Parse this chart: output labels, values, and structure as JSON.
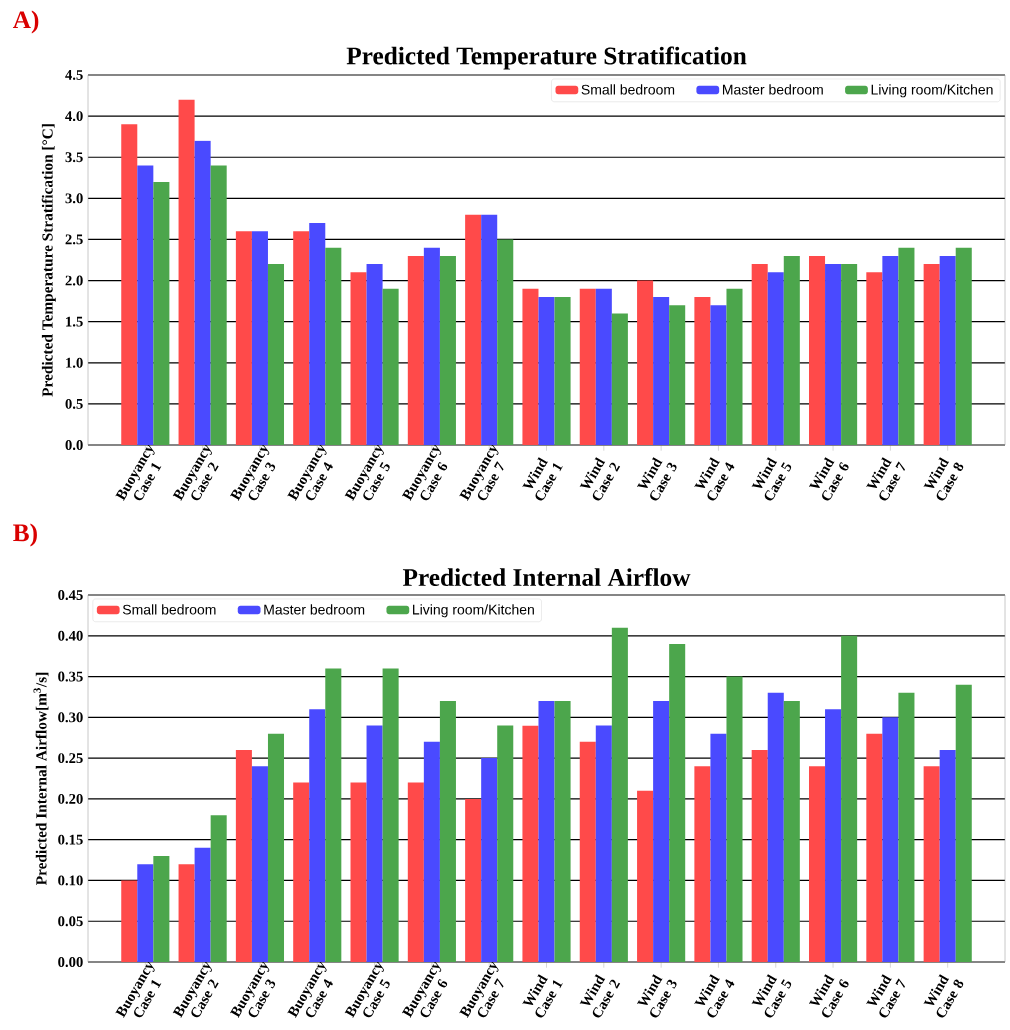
{
  "chart_data": [
    {
      "type": "bar",
      "title": "Predicted Temperature Stratification",
      "ylabel": "Predicted Temperature Stratification [°C]",
      "annotations": [
        "A)"
      ],
      "categories": [
        "Buoyancy Case 1",
        "Buoyancy Case 2",
        "Buoyancy Case 3",
        "Buoyancy Case 4",
        "Buoyancy Case 5",
        "Buoyancy Case 6",
        "Buoyancy Case 7",
        "Wind Case 1",
        "Wind Case 2",
        "Wind Case 3",
        "Wind Case 4",
        "Wind Case 5",
        "Wind Case 6",
        "Wind Case 7",
        "Wind Case 8"
      ],
      "series": [
        {
          "name": "Small bedroom",
          "color": "#ff4a4a",
          "values": [
            3.9,
            4.2,
            2.6,
            2.6,
            2.1,
            2.3,
            2.8,
            1.9,
            1.9,
            2.0,
            1.8,
            2.2,
            2.3,
            2.1,
            2.2
          ]
        },
        {
          "name": "Master bedroom",
          "color": "#4a4aff",
          "values": [
            3.4,
            3.7,
            2.6,
            2.7,
            2.2,
            2.4,
            2.8,
            1.8,
            1.9,
            1.8,
            1.7,
            2.1,
            2.2,
            2.3,
            2.3
          ]
        },
        {
          "name": "Living room/Kitchen",
          "color": "#4ca64c",
          "values": [
            3.2,
            3.4,
            2.2,
            2.4,
            1.9,
            2.3,
            2.5,
            1.8,
            1.6,
            1.7,
            1.9,
            2.3,
            2.2,
            2.4,
            2.4
          ]
        }
      ],
      "ylim": [
        0,
        4.5
      ],
      "yticks": [
        {
          "value": 0,
          "label": "0.0"
        },
        {
          "value": 0.5,
          "label": "0.5"
        },
        {
          "value": 1,
          "label": "1.0"
        },
        {
          "value": 1.5,
          "label": "1.5"
        },
        {
          "value": 2,
          "label": "2.0"
        },
        {
          "value": 2.5,
          "label": "2.5"
        },
        {
          "value": 3,
          "label": "3.0"
        },
        {
          "value": 3.5,
          "label": "3.5"
        },
        {
          "value": 4,
          "label": "4.0"
        },
        {
          "value": 4.5,
          "label": "4.5"
        }
      ],
      "grid": "y",
      "legend": "top right"
    },
    {
      "type": "bar",
      "title": "Predicted Internal Airflow",
      "ylabel": "Predicted Internal Airflow[m$^{3}$/s]",
      "annotations": [
        "B)"
      ],
      "categories": [
        "Buoyancy Case 1",
        "Buoyancy Case 2",
        "Buoyancy Case 3",
        "Buoyancy Case 4",
        "Buoyancy Case 5",
        "Buoyancy Case 6",
        "Buoyancy Case 7",
        "Wind Case 1",
        "Wind Case 2",
        "Wind Case 3",
        "Wind Case 4",
        "Wind Case 5",
        "Wind Case 6",
        "Wind Case 7",
        "Wind Case 8"
      ],
      "series": [
        {
          "name": "Small bedroom",
          "color": "#ff4a4a",
          "values": [
            0.1,
            0.12,
            0.26,
            0.22,
            0.22,
            0.22,
            0.2,
            0.29,
            0.27,
            0.21,
            0.24,
            0.26,
            0.24,
            0.28,
            0.24
          ]
        },
        {
          "name": "Master bedroom",
          "color": "#4a4aff",
          "values": [
            0.12,
            0.14,
            0.24,
            0.31,
            0.29,
            0.27,
            0.25,
            0.32,
            0.29,
            0.32,
            0.28,
            0.33,
            0.31,
            0.3,
            0.26
          ]
        },
        {
          "name": "Living room/Kitchen",
          "color": "#4ca64c",
          "values": [
            0.13,
            0.18,
            0.28,
            0.36,
            0.36,
            0.32,
            0.29,
            0.32,
            0.41,
            0.39,
            0.35,
            0.32,
            0.4,
            0.33,
            0.34
          ]
        }
      ],
      "ylim": [
        0,
        0.45
      ],
      "yticks": [
        {
          "value": 0,
          "label": "0.00"
        },
        {
          "value": 0.05,
          "label": "0.05"
        },
        {
          "value": 0.1,
          "label": "0.10"
        },
        {
          "value": 0.15,
          "label": "0.15"
        },
        {
          "value": 0.2,
          "label": "0.20"
        },
        {
          "value": 0.25,
          "label": "0.25"
        },
        {
          "value": 0.3,
          "label": "0.30"
        },
        {
          "value": 0.35,
          "label": "0.35"
        },
        {
          "value": 0.4,
          "label": "0.40"
        },
        {
          "value": 0.45,
          "label": "0.45"
        }
      ],
      "grid": "y",
      "legend": "top left"
    }
  ]
}
